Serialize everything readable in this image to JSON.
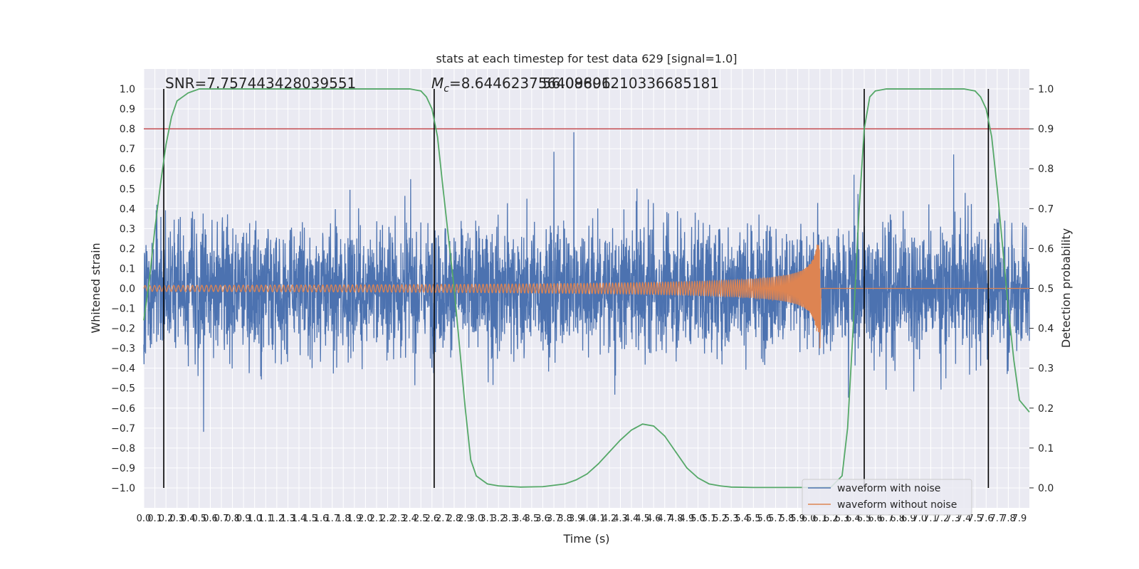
{
  "chart_data": {
    "type": "line",
    "title": "stats at each timestep for test data 629 [signal=1.0]",
    "xlabel": "Time (s)",
    "ylabel_left": "Whitened strain",
    "ylabel_right": "Detection probability",
    "xlim": [
      0.0,
      7.99
    ],
    "ylim_left": [
      -1.1,
      1.1
    ],
    "ylim_right": [
      -0.05,
      1.05
    ],
    "grid": true,
    "legend_position": "lower right",
    "x_ticks": [
      "0.0",
      "0.1",
      "0.2",
      "0.3",
      "0.4",
      "0.5",
      "0.6",
      "0.7",
      "0.8",
      "0.9",
      "1.0",
      "1.1",
      "1.2",
      "1.3",
      "1.4",
      "1.5",
      "1.6",
      "1.7",
      "1.8",
      "1.9",
      "2.0",
      "2.1",
      "2.2",
      "2.3",
      "2.4",
      "2.5",
      "2.6",
      "2.7",
      "2.8",
      "2.9",
      "3.0",
      "3.1",
      "3.2",
      "3.3",
      "3.4",
      "3.5",
      "3.6",
      "3.7",
      "3.8",
      "3.9",
      "4.0",
      "4.1",
      "4.2",
      "4.3",
      "4.4",
      "4.5",
      "4.6",
      "4.7",
      "4.8",
      "4.9",
      "5.0",
      "5.1",
      "5.2",
      "5.3",
      "5.4",
      "5.5",
      "5.6",
      "5.7",
      "5.8",
      "5.9",
      "6.0",
      "6.1",
      "6.2",
      "6.3",
      "6.4",
      "6.5",
      "6.6",
      "6.7",
      "6.8",
      "6.9",
      "7.0",
      "7.1",
      "7.2",
      "7.3",
      "7.4",
      "7.5",
      "7.6",
      "7.7",
      "7.8",
      "7.9"
    ],
    "y_ticks_left": [
      "−1.0",
      "−0.9",
      "−0.8",
      "−0.7",
      "−0.6",
      "−0.5",
      "−0.4",
      "−0.3",
      "−0.2",
      "−0.1",
      "0.0",
      "0.1",
      "0.2",
      "0.3",
      "0.4",
      "0.5",
      "0.6",
      "0.7",
      "0.8",
      "0.9",
      "1.0"
    ],
    "y_ticks_right": [
      "0.0",
      "0.1",
      "0.2",
      "0.3",
      "0.4",
      "0.5",
      "0.6",
      "0.7",
      "0.8",
      "0.9",
      "1.0"
    ],
    "annotations": {
      "snr": "SNR=7.757443428039551",
      "mc_symbol": "M",
      "mc_sub": "c",
      "mc_value": "=8.644623756409896",
      "overlap": "56.08601210336685181"
    },
    "threshold": {
      "value": 0.9,
      "axis": "right",
      "color": "#c44e52"
    },
    "vertical_lines": [
      0.18,
      2.62,
      6.5,
      7.62
    ],
    "series": [
      {
        "name": "waveform with noise",
        "color": "#4c72b0",
        "axis": "left",
        "envelope": {
          "typical_amplitude": 0.4,
          "peak_max": 1.0,
          "peak_min": -1.0
        }
      },
      {
        "name": "waveform without noise",
        "color": "#dd8452",
        "axis": "left",
        "chirp": {
          "merger_time": 6.1,
          "peak_positive": 0.22,
          "peak_negative": -0.3,
          "early_amplitude": 0.015
        }
      },
      {
        "name": "detection probability",
        "color": "#55a868",
        "axis": "right",
        "x": [
          0.0,
          0.05,
          0.1,
          0.15,
          0.2,
          0.25,
          0.3,
          0.4,
          0.5,
          0.7,
          1.0,
          1.5,
          2.0,
          2.4,
          2.5,
          2.55,
          2.6,
          2.65,
          2.7,
          2.8,
          2.9,
          2.95,
          3.0,
          3.1,
          3.2,
          3.4,
          3.6,
          3.8,
          3.9,
          4.0,
          4.1,
          4.2,
          4.3,
          4.4,
          4.5,
          4.6,
          4.7,
          4.8,
          4.9,
          5.0,
          5.1,
          5.2,
          5.3,
          5.5,
          5.7,
          6.0,
          6.2,
          6.3,
          6.35,
          6.4,
          6.45,
          6.5,
          6.55,
          6.6,
          6.7,
          6.8,
          7.0,
          7.2,
          7.4,
          7.5,
          7.55,
          7.6,
          7.65,
          7.7,
          7.75,
          7.8,
          7.85,
          7.9,
          7.99
        ],
        "values": [
          0.42,
          0.52,
          0.65,
          0.76,
          0.86,
          0.93,
          0.97,
          0.99,
          1.0,
          1.0,
          1.0,
          1.0,
          1.0,
          1.0,
          0.995,
          0.98,
          0.95,
          0.88,
          0.75,
          0.5,
          0.2,
          0.07,
          0.03,
          0.01,
          0.005,
          0.002,
          0.003,
          0.01,
          0.02,
          0.035,
          0.06,
          0.09,
          0.12,
          0.145,
          0.16,
          0.155,
          0.13,
          0.09,
          0.05,
          0.025,
          0.01,
          0.005,
          0.002,
          0.001,
          0.001,
          0.001,
          0.002,
          0.03,
          0.15,
          0.4,
          0.68,
          0.9,
          0.98,
          0.995,
          1.0,
          1.0,
          1.0,
          1.0,
          1.0,
          0.995,
          0.98,
          0.95,
          0.88,
          0.75,
          0.6,
          0.45,
          0.32,
          0.22,
          0.19
        ]
      }
    ]
  }
}
